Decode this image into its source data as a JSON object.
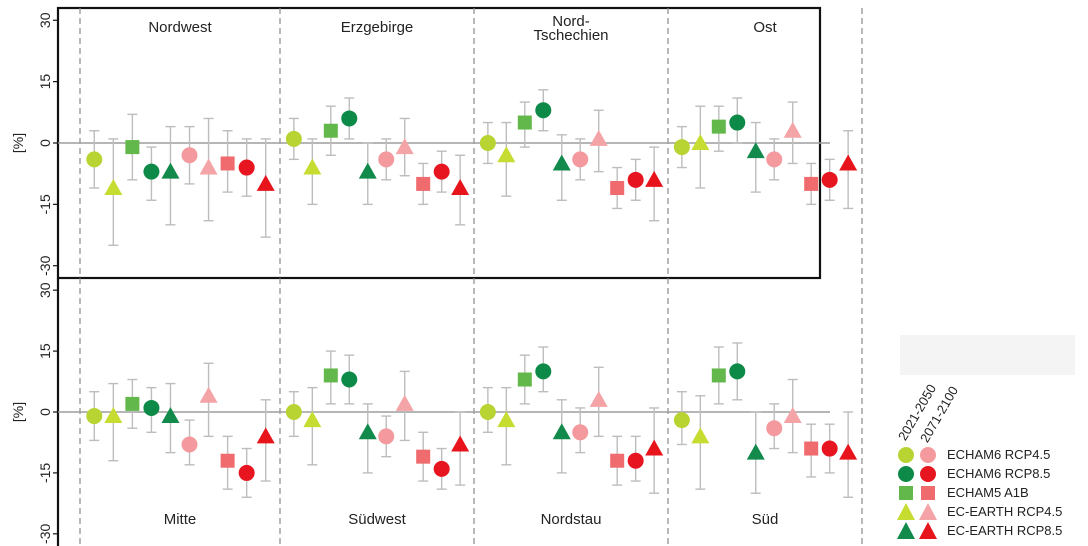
{
  "chart_data": {
    "type": "scatter",
    "y_axis": {
      "label": "[%]",
      "ylim": [
        -33,
        33
      ],
      "ticks": [
        30,
        15,
        0,
        -15,
        -30
      ]
    },
    "legend_headers": [
      "2021-2050",
      "2071-2100"
    ],
    "series": [
      {
        "name": "ECHAM6 RCP4.5",
        "marker": "circle",
        "color_2021": "#b8d433",
        "color_2071": "#f49a9e"
      },
      {
        "name": "ECHAM6 RCP8.5",
        "marker": "circle",
        "color_2021": "#0e8a48",
        "color_2071": "#e6151f"
      },
      {
        "name": "ECHAM5 A1B",
        "marker": "square",
        "color_2021": "#62b84a",
        "color_2071": "#ef6b6e"
      },
      {
        "name": "EC-EARTH RCP4.5",
        "marker": "triangle",
        "color_2021": "#c6dc30",
        "color_2071": "#f4a3a6"
      },
      {
        "name": "EC-EARTH RCP8.5",
        "marker": "triangle",
        "color_2021": "#128a4c",
        "color_2071": "#e8141c"
      }
    ],
    "panels": [
      {
        "name": "Nordwest",
        "row": 0,
        "col": 0,
        "label_pos": "top",
        "points": [
          {
            "period": "2021-2050",
            "series": 0,
            "value": -4,
            "low": -11,
            "high": 3
          },
          {
            "period": "2021-2050",
            "series": 3,
            "value": -11,
            "low": -25,
            "high": 1
          },
          {
            "period": "2021-2050",
            "series": 2,
            "value": -1,
            "low": -9,
            "high": 7
          },
          {
            "period": "2021-2050",
            "series": 1,
            "value": -7,
            "low": -14,
            "high": -1
          },
          {
            "period": "2021-2050",
            "series": 4,
            "value": -7,
            "low": -20,
            "high": 4
          },
          {
            "period": "2071-2100",
            "series": 0,
            "value": -3,
            "low": -10,
            "high": 4
          },
          {
            "period": "2071-2100",
            "series": 3,
            "value": -6,
            "low": -19,
            "high": 6
          },
          {
            "period": "2071-2100",
            "series": 2,
            "value": -5,
            "low": -12,
            "high": 3
          },
          {
            "period": "2071-2100",
            "series": 1,
            "value": -6,
            "low": -13,
            "high": 1
          },
          {
            "period": "2071-2100",
            "series": 4,
            "value": -10,
            "low": -23,
            "high": 1
          }
        ]
      },
      {
        "name": "Erzgebirge",
        "row": 0,
        "col": 1,
        "label_pos": "top",
        "points": [
          {
            "period": "2021-2050",
            "series": 0,
            "value": 1,
            "low": -4,
            "high": 6
          },
          {
            "period": "2021-2050",
            "series": 3,
            "value": -6,
            "low": -15,
            "high": 1
          },
          {
            "period": "2021-2050",
            "series": 2,
            "value": 3,
            "low": -3,
            "high": 9
          },
          {
            "period": "2021-2050",
            "series": 1,
            "value": 6,
            "low": 1,
            "high": 11
          },
          {
            "period": "2021-2050",
            "series": 4,
            "value": -7,
            "low": -15,
            "high": 0
          },
          {
            "period": "2071-2100",
            "series": 0,
            "value": -4,
            "low": -9,
            "high": 1
          },
          {
            "period": "2071-2100",
            "series": 3,
            "value": -1,
            "low": -8,
            "high": 6
          },
          {
            "period": "2071-2100",
            "series": 2,
            "value": -10,
            "low": -15,
            "high": -5
          },
          {
            "period": "2071-2100",
            "series": 1,
            "value": -7,
            "low": -12,
            "high": -2
          },
          {
            "period": "2071-2100",
            "series": 4,
            "value": -11,
            "low": -20,
            "high": -3
          }
        ]
      },
      {
        "name": "Nord-\nTschechien",
        "row": 0,
        "col": 2,
        "label_pos": "top",
        "points": [
          {
            "period": "2021-2050",
            "series": 0,
            "value": 0,
            "low": -5,
            "high": 5
          },
          {
            "period": "2021-2050",
            "series": 3,
            "value": -3,
            "low": -13,
            "high": 5
          },
          {
            "period": "2021-2050",
            "series": 2,
            "value": 5,
            "low": -1,
            "high": 10
          },
          {
            "period": "2021-2050",
            "series": 1,
            "value": 8,
            "low": 3,
            "high": 13
          },
          {
            "period": "2021-2050",
            "series": 4,
            "value": -5,
            "low": -14,
            "high": 2
          },
          {
            "period": "2071-2100",
            "series": 0,
            "value": -4,
            "low": -9,
            "high": 1
          },
          {
            "period": "2071-2100",
            "series": 3,
            "value": 1,
            "low": -7,
            "high": 8
          },
          {
            "period": "2071-2100",
            "series": 2,
            "value": -11,
            "low": -16,
            "high": -6
          },
          {
            "period": "2071-2100",
            "series": 1,
            "value": -9,
            "low": -14,
            "high": -4
          },
          {
            "period": "2071-2100",
            "series": 4,
            "value": -9,
            "low": -19,
            "high": -1
          }
        ]
      },
      {
        "name": "Ost",
        "row": 0,
        "col": 3,
        "label_pos": "top",
        "points": [
          {
            "period": "2021-2050",
            "series": 0,
            "value": -1,
            "low": -6,
            "high": 4
          },
          {
            "period": "2021-2050",
            "series": 3,
            "value": 0,
            "low": -11,
            "high": 9
          },
          {
            "period": "2021-2050",
            "series": 2,
            "value": 4,
            "low": -2,
            "high": 9
          },
          {
            "period": "2021-2050",
            "series": 1,
            "value": 5,
            "low": 0,
            "high": 11
          },
          {
            "period": "2021-2050",
            "series": 4,
            "value": -2,
            "low": -12,
            "high": 5
          },
          {
            "period": "2071-2100",
            "series": 0,
            "value": -4,
            "low": -9,
            "high": 1
          },
          {
            "period": "2071-2100",
            "series": 3,
            "value": 3,
            "low": -5,
            "high": 10
          },
          {
            "period": "2071-2100",
            "series": 2,
            "value": -10,
            "low": -15,
            "high": -5
          },
          {
            "period": "2071-2100",
            "series": 1,
            "value": -9,
            "low": -14,
            "high": -4
          },
          {
            "period": "2071-2100",
            "series": 4,
            "value": -5,
            "low": -16,
            "high": 3
          }
        ]
      },
      {
        "name": "Mitte",
        "row": 1,
        "col": 0,
        "label_pos": "bottom",
        "points": [
          {
            "period": "2021-2050",
            "series": 0,
            "value": -1,
            "low": -7,
            "high": 5
          },
          {
            "period": "2021-2050",
            "series": 3,
            "value": -1,
            "low": -12,
            "high": 7
          },
          {
            "period": "2021-2050",
            "series": 2,
            "value": 2,
            "low": -4,
            "high": 8
          },
          {
            "period": "2021-2050",
            "series": 1,
            "value": 1,
            "low": -5,
            "high": 6
          },
          {
            "period": "2021-2050",
            "series": 4,
            "value": -1,
            "low": -10,
            "high": 7
          },
          {
            "period": "2071-2100",
            "series": 0,
            "value": -8,
            "low": -13,
            "high": -2
          },
          {
            "period": "2071-2100",
            "series": 3,
            "value": 4,
            "low": -6,
            "high": 12
          },
          {
            "period": "2071-2100",
            "series": 2,
            "value": -12,
            "low": -19,
            "high": -6
          },
          {
            "period": "2071-2100",
            "series": 1,
            "value": -15,
            "low": -21,
            "high": -9
          },
          {
            "period": "2071-2100",
            "series": 4,
            "value": -6,
            "low": -17,
            "high": 3
          }
        ]
      },
      {
        "name": "Südwest",
        "row": 1,
        "col": 1,
        "label_pos": "bottom",
        "points": [
          {
            "period": "2021-2050",
            "series": 0,
            "value": 0,
            "low": -6,
            "high": 5
          },
          {
            "period": "2021-2050",
            "series": 3,
            "value": -2,
            "low": -13,
            "high": 6
          },
          {
            "period": "2021-2050",
            "series": 2,
            "value": 9,
            "low": 2,
            "high": 15
          },
          {
            "period": "2021-2050",
            "series": 1,
            "value": 8,
            "low": 2,
            "high": 14
          },
          {
            "period": "2021-2050",
            "series": 4,
            "value": -5,
            "low": -15,
            "high": 2
          },
          {
            "period": "2071-2100",
            "series": 0,
            "value": -6,
            "low": -11,
            "high": -1
          },
          {
            "period": "2071-2100",
            "series": 3,
            "value": 2,
            "low": -7,
            "high": 10
          },
          {
            "period": "2071-2100",
            "series": 2,
            "value": -11,
            "low": -17,
            "high": -5
          },
          {
            "period": "2071-2100",
            "series": 1,
            "value": -14,
            "low": -19,
            "high": -9
          },
          {
            "period": "2071-2100",
            "series": 4,
            "value": -8,
            "low": -18,
            "high": 0
          }
        ]
      },
      {
        "name": "Nordstau",
        "row": 1,
        "col": 2,
        "label_pos": "bottom",
        "points": [
          {
            "period": "2021-2050",
            "series": 0,
            "value": 0,
            "low": -5,
            "high": 6
          },
          {
            "period": "2021-2050",
            "series": 3,
            "value": -2,
            "low": -13,
            "high": 6
          },
          {
            "period": "2021-2050",
            "series": 2,
            "value": 8,
            "low": 2,
            "high": 14
          },
          {
            "period": "2021-2050",
            "series": 1,
            "value": 10,
            "low": 5,
            "high": 16
          },
          {
            "period": "2021-2050",
            "series": 4,
            "value": -5,
            "low": -15,
            "high": 3
          },
          {
            "period": "2071-2100",
            "series": 0,
            "value": -5,
            "low": -10,
            "high": 1
          },
          {
            "period": "2071-2100",
            "series": 3,
            "value": 3,
            "low": -6,
            "high": 11
          },
          {
            "period": "2071-2100",
            "series": 2,
            "value": -12,
            "low": -18,
            "high": -6
          },
          {
            "period": "2071-2100",
            "series": 1,
            "value": -12,
            "low": -17,
            "high": -6
          },
          {
            "period": "2071-2100",
            "series": 4,
            "value": -9,
            "low": -20,
            "high": 1
          }
        ]
      },
      {
        "name": "Süd",
        "row": 1,
        "col": 3,
        "label_pos": "bottom",
        "points": [
          {
            "period": "2021-2050",
            "series": 0,
            "value": -2,
            "low": -8,
            "high": 5
          },
          {
            "period": "2021-2050",
            "series": 3,
            "value": -6,
            "low": -19,
            "high": 4
          },
          {
            "period": "2021-2050",
            "series": 2,
            "value": 9,
            "low": 2,
            "high": 16
          },
          {
            "period": "2021-2050",
            "series": 1,
            "value": 10,
            "low": 3,
            "high": 17
          },
          {
            "period": "2021-2050",
            "series": 4,
            "value": -10,
            "low": -20,
            "high": 0
          },
          {
            "period": "2071-2100",
            "series": 0,
            "value": -4,
            "low": -9,
            "high": 2
          },
          {
            "period": "2071-2100",
            "series": 3,
            "value": -1,
            "low": -10,
            "high": 8
          },
          {
            "period": "2071-2100",
            "series": 2,
            "value": -9,
            "low": -16,
            "high": -3
          },
          {
            "period": "2071-2100",
            "series": 1,
            "value": -9,
            "low": -15,
            "high": -3
          },
          {
            "period": "2071-2100",
            "series": 4,
            "value": -10,
            "low": -21,
            "high": 0
          }
        ]
      }
    ]
  },
  "colors": {
    "errorbar": "#bdbdbd",
    "zero_line": "#9e9e9e",
    "divider": "#8a8a8a",
    "frame": "#111111"
  }
}
